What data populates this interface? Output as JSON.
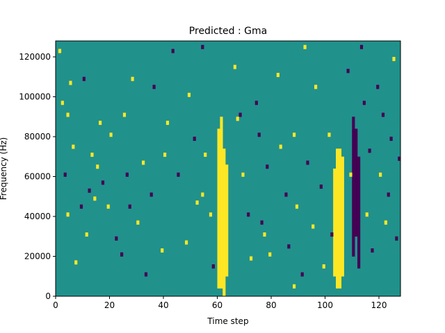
{
  "chart_data": {
    "type": "heatmap",
    "title": "Predicted : Gma",
    "xlabel": "Time step",
    "ylabel": "Frequency (Hz)",
    "xlim": [
      0,
      128
    ],
    "ylim": [
      0,
      128000
    ],
    "x_ticks": [
      0,
      20,
      40,
      60,
      80,
      100,
      120
    ],
    "y_ticks": [
      0,
      20000,
      40000,
      60000,
      80000,
      100000,
      120000
    ],
    "x_tick_labels": [
      "0",
      "20",
      "40",
      "60",
      "80",
      "100",
      "120"
    ],
    "y_tick_labels": [
      "0",
      "20000",
      "40000",
      "60000",
      "80000",
      "100000",
      "120000"
    ],
    "colormap": "viridis",
    "values_present": [
      -1,
      0,
      1
    ],
    "colors": {
      "-1": "#440154",
      "0": "#21918c",
      "1": "#fde725"
    },
    "background_value": 0,
    "grid": false,
    "cell_height_hz": 2000,
    "bands": [
      {
        "value": 1,
        "time_step": 60,
        "freq_from": 4000,
        "freq_to": 84000
      },
      {
        "value": 1,
        "time_step": 61,
        "freq_from": 4000,
        "freq_to": 90000
      },
      {
        "value": 1,
        "time_step": 62,
        "freq_from": 0,
        "freq_to": 74000
      },
      {
        "value": 1,
        "time_step": 63,
        "freq_from": 10000,
        "freq_to": 66000
      },
      {
        "value": 1,
        "time_step": 103,
        "freq_from": 10000,
        "freq_to": 64000
      },
      {
        "value": 1,
        "time_step": 104,
        "freq_from": 4000,
        "freq_to": 74000
      },
      {
        "value": 1,
        "time_step": 105,
        "freq_from": 4000,
        "freq_to": 74000
      },
      {
        "value": 1,
        "time_step": 106,
        "freq_from": 10000,
        "freq_to": 70000
      },
      {
        "value": -1,
        "time_step": 110,
        "freq_from": 20000,
        "freq_to": 90000
      },
      {
        "value": -1,
        "time_step": 111,
        "freq_from": 30000,
        "freq_to": 84000
      },
      {
        "value": -1,
        "time_step": 112,
        "freq_from": 14000,
        "freq_to": 70000
      }
    ],
    "cells": [
      [
        1,
        122000,
        1
      ],
      [
        5,
        106000,
        1
      ],
      [
        4,
        90000,
        1
      ],
      [
        6,
        74000,
        1
      ],
      [
        2,
        96000,
        1
      ],
      [
        3,
        60000,
        -1
      ],
      [
        4,
        40000,
        1
      ],
      [
        7,
        16000,
        1
      ],
      [
        9,
        44000,
        -1
      ],
      [
        10,
        108000,
        -1
      ],
      [
        11,
        30000,
        1
      ],
      [
        12,
        52000,
        -1
      ],
      [
        13,
        70000,
        1
      ],
      [
        14,
        48000,
        1
      ],
      [
        16,
        86000,
        1
      ],
      [
        17,
        56000,
        -1
      ],
      [
        19,
        44000,
        1
      ],
      [
        20,
        80000,
        1
      ],
      [
        22,
        28000,
        -1
      ],
      [
        24,
        20000,
        -1
      ],
      [
        25,
        90000,
        1
      ],
      [
        26,
        60000,
        -1
      ],
      [
        28,
        108000,
        1
      ],
      [
        30,
        36000,
        1
      ],
      [
        32,
        66000,
        1
      ],
      [
        35,
        50000,
        -1
      ],
      [
        36,
        104000,
        -1
      ],
      [
        39,
        22000,
        1
      ],
      [
        40,
        70000,
        1
      ],
      [
        43,
        122000,
        -1
      ],
      [
        45,
        60000,
        -1
      ],
      [
        48,
        26000,
        1
      ],
      [
        49,
        100000,
        1
      ],
      [
        51,
        78000,
        -1
      ],
      [
        52,
        46000,
        1
      ],
      [
        54,
        124000,
        -1
      ],
      [
        55,
        70000,
        1
      ],
      [
        57,
        40000,
        1
      ],
      [
        58,
        14000,
        -1
      ],
      [
        66,
        114000,
        1
      ],
      [
        68,
        90000,
        -1
      ],
      [
        69,
        60000,
        1
      ],
      [
        71,
        40000,
        -1
      ],
      [
        72,
        18000,
        1
      ],
      [
        74,
        96000,
        -1
      ],
      [
        75,
        80000,
        -1
      ],
      [
        77,
        30000,
        1
      ],
      [
        78,
        64000,
        -1
      ],
      [
        79,
        20000,
        1
      ],
      [
        82,
        110000,
        1
      ],
      [
        83,
        74000,
        1
      ],
      [
        85,
        50000,
        -1
      ],
      [
        86,
        24000,
        -1
      ],
      [
        88,
        80000,
        1
      ],
      [
        89,
        44000,
        1
      ],
      [
        91,
        10000,
        -1
      ],
      [
        92,
        124000,
        1
      ],
      [
        93,
        66000,
        -1
      ],
      [
        95,
        34000,
        1
      ],
      [
        96,
        104000,
        1
      ],
      [
        98,
        54000,
        -1
      ],
      [
        99,
        14000,
        1
      ],
      [
        101,
        80000,
        1
      ],
      [
        102,
        30000,
        -1
      ],
      [
        108,
        112000,
        -1
      ],
      [
        109,
        60000,
        1
      ],
      [
        113,
        124000,
        -1
      ],
      [
        114,
        96000,
        -1
      ],
      [
        115,
        40000,
        1
      ],
      [
        116,
        72000,
        -1
      ],
      [
        117,
        22000,
        -1
      ],
      [
        119,
        104000,
        -1
      ],
      [
        120,
        60000,
        1
      ],
      [
        121,
        90000,
        -1
      ],
      [
        122,
        36000,
        1
      ],
      [
        123,
        50000,
        -1
      ],
      [
        124,
        78000,
        -1
      ],
      [
        125,
        118000,
        1
      ],
      [
        126,
        28000,
        -1
      ],
      [
        127,
        68000,
        -1
      ],
      [
        54,
        50000,
        1
      ],
      [
        27,
        44000,
        -1
      ],
      [
        76,
        36000,
        -1
      ],
      [
        41,
        86000,
        1
      ],
      [
        88,
        4000,
        1
      ],
      [
        33,
        10000,
        -1
      ],
      [
        15,
        64000,
        1
      ],
      [
        67,
        88000,
        1
      ]
    ]
  }
}
